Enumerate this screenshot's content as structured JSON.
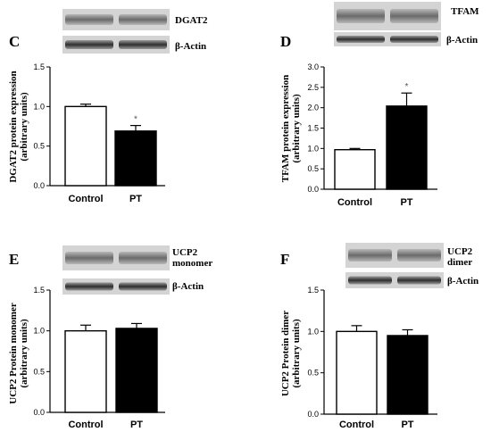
{
  "chart_data": [
    {
      "type": "bar",
      "panel": "C",
      "blot_labels": [
        "DGAT2",
        "β-Actin"
      ],
      "categories": [
        "Control",
        "PT"
      ],
      "values": [
        1.0,
        0.69
      ],
      "errors": [
        0.03,
        0.07
      ],
      "significance": [
        "",
        "*"
      ],
      "ylabel_lines": [
        "DGAT2 protein expression",
        "(arbitrary units)"
      ],
      "ylim": [
        0,
        1.5
      ],
      "yticks": [
        0.0,
        0.5,
        1.0,
        1.5
      ],
      "ytick_labels": [
        "0.0",
        "0.5",
        "1.0",
        "1.5"
      ],
      "bar_colors": [
        "#ffffff",
        "#000000"
      ]
    },
    {
      "type": "bar",
      "panel": "D",
      "blot_labels": [
        "TFAM",
        "β-Actin"
      ],
      "categories": [
        "Control",
        "PT"
      ],
      "values": [
        0.97,
        2.04
      ],
      "errors": [
        0.03,
        0.32
      ],
      "significance": [
        "",
        "*"
      ],
      "ylabel_lines": [
        "TFAM protein expression",
        "(arbitrary units)"
      ],
      "ylim": [
        0,
        3.0
      ],
      "yticks": [
        0.0,
        0.5,
        1.0,
        1.5,
        2.0,
        2.5,
        3.0
      ],
      "ytick_labels": [
        "0.0",
        "0.5",
        "1.0",
        "1.5",
        "2.0",
        "2.5",
        "3.0"
      ],
      "bar_colors": [
        "#ffffff",
        "#000000"
      ]
    },
    {
      "type": "bar",
      "panel": "E",
      "blot_labels": [
        "UCP2",
        "monomer",
        "β-Actin"
      ],
      "categories": [
        "Control",
        "PT"
      ],
      "values": [
        1.0,
        1.03
      ],
      "errors": [
        0.07,
        0.06
      ],
      "significance": [
        "",
        ""
      ],
      "ylabel_lines": [
        "UCP2 Protein monomer",
        "(arbitrary units)"
      ],
      "ylim": [
        0,
        1.5
      ],
      "yticks": [
        0.0,
        0.5,
        1.0,
        1.5
      ],
      "ytick_labels": [
        "0.0",
        "0.5",
        "1.0",
        "1.5"
      ],
      "bar_colors": [
        "#ffffff",
        "#000000"
      ]
    },
    {
      "type": "bar",
      "panel": "F",
      "blot_labels": [
        "UCP2",
        "dimer",
        "β-Actin"
      ],
      "categories": [
        "Control",
        "PT"
      ],
      "values": [
        1.0,
        0.95
      ],
      "errors": [
        0.07,
        0.07
      ],
      "significance": [
        "",
        ""
      ],
      "ylabel_lines": [
        "UCP2 Protein dimer",
        "(arbitrary units)"
      ],
      "ylim": [
        0,
        1.5
      ],
      "yticks": [
        0.0,
        0.5,
        1.0,
        1.5
      ],
      "ytick_labels": [
        "0.0",
        "0.5",
        "1.0",
        "1.5"
      ],
      "bar_colors": [
        "#ffffff",
        "#000000"
      ]
    }
  ]
}
